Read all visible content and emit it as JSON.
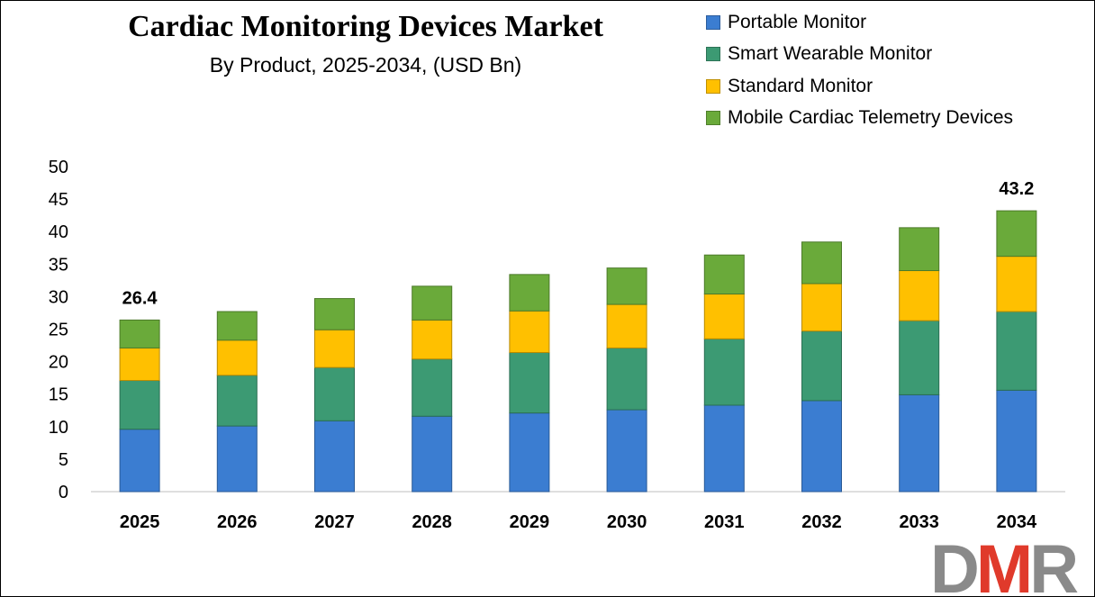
{
  "chart_data": {
    "type": "bar",
    "stacked": true,
    "title": "Cardiac Monitoring Devices Market",
    "subtitle": "By Product, 2025-2034, (USD Bn)",
    "categories": [
      "2025",
      "2026",
      "2027",
      "2028",
      "2029",
      "2030",
      "2031",
      "2032",
      "2033",
      "2034"
    ],
    "series": [
      {
        "name": "Portable Monitor",
        "color": "#3b7dd1",
        "values": [
          9.6,
          10.1,
          10.9,
          11.6,
          12.1,
          12.6,
          13.3,
          14.0,
          14.9,
          15.6
        ]
      },
      {
        "name": "Smart Wearable Monitor",
        "color": "#3c9a73",
        "values": [
          7.5,
          7.8,
          8.2,
          8.8,
          9.3,
          9.5,
          10.2,
          10.7,
          11.4,
          12.1
        ]
      },
      {
        "name": "Standard Monitor",
        "color": "#ffc000",
        "values": [
          5.0,
          5.4,
          5.8,
          6.0,
          6.4,
          6.7,
          6.9,
          7.3,
          7.7,
          8.5
        ]
      },
      {
        "name": "Mobile Cardiac Telemetry Devices",
        "color": "#6aaa3a",
        "values": [
          4.3,
          4.4,
          4.8,
          5.2,
          5.6,
          5.6,
          6.0,
          6.4,
          6.6,
          7.0
        ]
      }
    ],
    "data_labels": [
      {
        "category": "2025",
        "text": "26.4"
      },
      {
        "category": "2034",
        "text": "43.2"
      }
    ],
    "ylim": [
      0,
      50
    ],
    "yticks": [
      0,
      5,
      10,
      15,
      20,
      25,
      30,
      35,
      40,
      45,
      50
    ],
    "xlabel": "",
    "ylabel": "",
    "grid": false,
    "legend_position": "top-right"
  },
  "logo": {
    "text_d": "D",
    "text_m": "M",
    "text_r": "R"
  }
}
